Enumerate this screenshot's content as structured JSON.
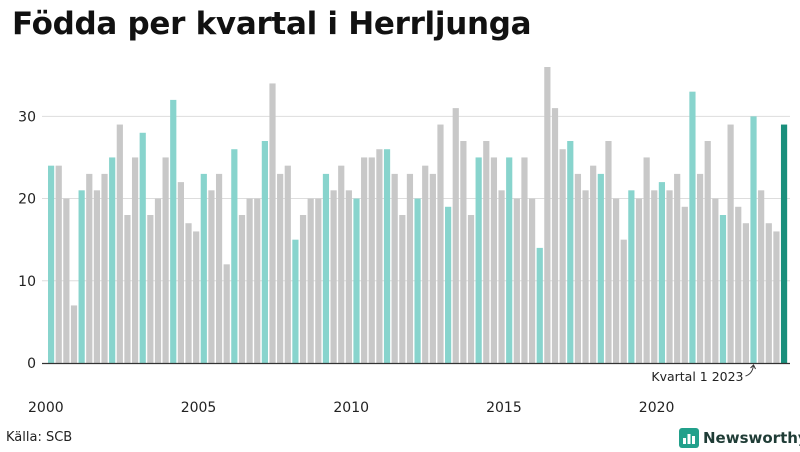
{
  "title": "Födda per kvartal i Herrljunga",
  "source": "Källa: SCB",
  "brand": "Newsworthy",
  "colors": {
    "gray": "#c8c8c8",
    "teal": "#88d4cd",
    "highlight": "#1a8f7c",
    "text": "#222222"
  },
  "chart_data": {
    "type": "bar",
    "title": "Födda per kvartal i Herrljunga",
    "xlabel": "",
    "ylabel": "",
    "ylim": [
      0,
      36
    ],
    "yticks": [
      0,
      10,
      20,
      30
    ],
    "xtick_labels": [
      {
        "label": "2000",
        "index": 0
      },
      {
        "label": "2005",
        "index": 20
      },
      {
        "label": "2010",
        "index": 40
      },
      {
        "label": "2015",
        "index": 60
      },
      {
        "label": "2020",
        "index": 80
      }
    ],
    "teal_quarter": 1,
    "values": [
      24,
      24,
      20,
      7,
      21,
      23,
      21,
      23,
      25,
      29,
      18,
      25,
      28,
      18,
      20,
      25,
      32,
      22,
      17,
      16,
      23,
      21,
      23,
      12,
      26,
      18,
      20,
      20,
      27,
      34,
      23,
      24,
      15,
      18,
      20,
      20,
      23,
      21,
      24,
      21,
      20,
      25,
      25,
      26,
      26,
      23,
      18,
      23,
      20,
      24,
      23,
      29,
      19,
      31,
      27,
      18,
      25,
      27,
      25,
      21,
      25,
      20,
      25,
      20,
      14,
      36,
      31,
      26,
      27,
      23,
      21,
      24,
      23,
      27,
      20,
      15,
      21,
      20,
      25,
      21,
      22,
      21,
      23,
      19,
      33,
      23,
      27,
      20,
      18,
      29,
      19,
      17,
      30,
      21,
      17,
      16,
      29
    ],
    "annotation": {
      "text": "Kvartal 1 2023",
      "index": 92
    }
  }
}
